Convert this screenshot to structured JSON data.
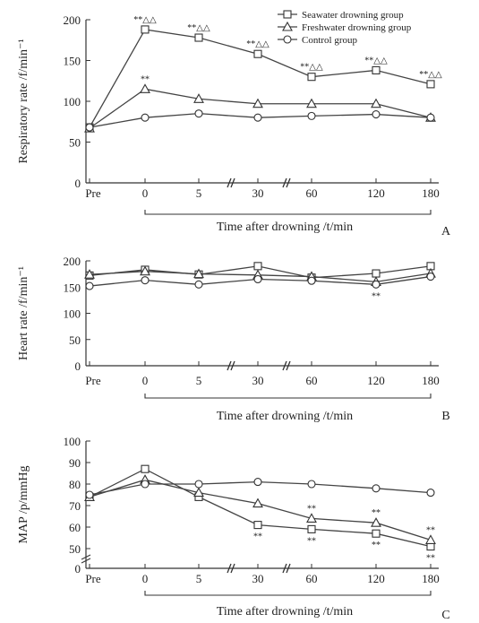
{
  "chart_data": [
    {
      "panel_label": "A",
      "type": "line",
      "ylabel": "Respiratory rate /f/min⁻¹",
      "xlabel": "Time after drowning /t/min",
      "categories": [
        "Pre",
        "0",
        "5",
        "30",
        "60",
        "120",
        "180"
      ],
      "yticks": [
        0,
        50,
        100,
        150,
        200
      ],
      "ylim": [
        0,
        200
      ],
      "grid": false,
      "legend_position": "top-right",
      "series": [
        {
          "name": "Seawater drowning group",
          "marker": "square",
          "values": [
            68,
            188,
            178,
            158,
            130,
            138,
            121
          ],
          "annotations": [
            "",
            "**△△",
            "**△△",
            "**△△",
            "**△△",
            "**△△",
            "**△△"
          ]
        },
        {
          "name": "Freshwater drowning group",
          "marker": "triangle",
          "values": [
            67,
            115,
            103,
            97,
            97,
            97,
            80
          ],
          "annotations": [
            "",
            "**",
            "",
            "",
            "",
            "",
            ""
          ]
        },
        {
          "name": "Control group",
          "marker": "circle",
          "values": [
            68,
            80,
            85,
            80,
            82,
            84,
            80
          ],
          "annotations": [
            "",
            "",
            "",
            "",
            "",
            "",
            ""
          ]
        }
      ]
    },
    {
      "panel_label": "B",
      "type": "line",
      "ylabel": "Heart rate /f/min⁻¹",
      "xlabel": "Time after drowning /t/min",
      "categories": [
        "Pre",
        "0",
        "5",
        "30",
        "60",
        "120",
        "180"
      ],
      "yticks": [
        0,
        50,
        100,
        150,
        200
      ],
      "ylim": [
        0,
        200
      ],
      "grid": false,
      "series": [
        {
          "name": "Seawater drowning group",
          "marker": "square",
          "values": [
            172,
            183,
            174,
            190,
            168,
            176,
            190
          ],
          "annotations": [
            "",
            "",
            "",
            "",
            "",
            "",
            ""
          ]
        },
        {
          "name": "Freshwater drowning group",
          "marker": "triangle",
          "values": [
            174,
            180,
            175,
            173,
            170,
            160,
            176
          ],
          "annotations": [
            "",
            "",
            "",
            "",
            "",
            "",
            ""
          ]
        },
        {
          "name": "Control group",
          "marker": "circle",
          "values": [
            152,
            163,
            155,
            165,
            162,
            155,
            170
          ],
          "annotations": [
            "",
            "",
            "",
            "",
            "",
            "**",
            ""
          ]
        }
      ]
    },
    {
      "panel_label": "C",
      "type": "line",
      "ylabel": "MAP /p/mmHg",
      "xlabel": "Time after drowning /t/min",
      "categories": [
        "Pre",
        "0",
        "5",
        "30",
        "60",
        "120",
        "180"
      ],
      "yticks": [
        0,
        50,
        60,
        70,
        80,
        90,
        100
      ],
      "ylim": [
        0,
        100
      ],
      "grid": false,
      "series": [
        {
          "name": "Seawater drowning group",
          "marker": "square",
          "values": [
            74,
            87,
            74,
            61,
            59,
            57,
            51
          ],
          "annotations": [
            "",
            "",
            "",
            "**",
            "**",
            "**",
            "**"
          ]
        },
        {
          "name": "Freshwater drowning group",
          "marker": "triangle",
          "values": [
            74,
            82,
            76,
            71,
            64,
            62,
            54
          ],
          "annotations": [
            "",
            "",
            "",
            "",
            "**",
            "**",
            "**"
          ]
        },
        {
          "name": "Control group",
          "marker": "circle",
          "values": [
            75,
            80,
            80,
            81,
            80,
            78,
            76
          ],
          "annotations": [
            "",
            "",
            "",
            "",
            "",
            "",
            ""
          ]
        }
      ]
    }
  ]
}
